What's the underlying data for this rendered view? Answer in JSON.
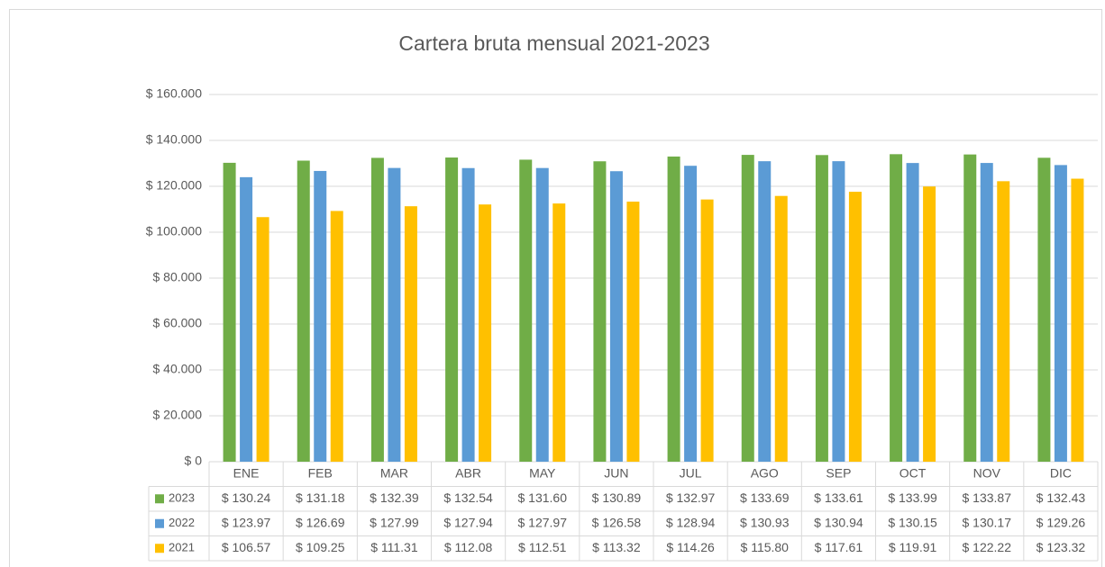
{
  "chart_data": {
    "type": "bar",
    "title": "Cartera bruta  mensual 2021-2023",
    "categories": [
      "ENE",
      "FEB",
      "MAR",
      "ABR",
      "MAY",
      "JUN",
      "JUL",
      "AGO",
      "SEP",
      "OCT",
      "NOV",
      "DIC"
    ],
    "series": [
      {
        "name": "2023",
        "color": "#70ad47",
        "values": [
          130240,
          131180,
          132390,
          132540,
          131600,
          130890,
          132970,
          133690,
          133610,
          133990,
          133870,
          132430
        ],
        "value_labels": [
          "$ 130.24",
          "$ 131.18",
          "$ 132.39",
          "$ 132.54",
          "$ 131.60",
          "$ 130.89",
          "$ 132.97",
          "$ 133.69",
          "$ 133.61",
          "$ 133.99",
          "$ 133.87",
          "$ 132.43"
        ]
      },
      {
        "name": "2022",
        "color": "#5b9bd5",
        "values": [
          123970,
          126690,
          127990,
          127940,
          127970,
          126580,
          128940,
          130930,
          130940,
          130150,
          130170,
          129260
        ],
        "value_labels": [
          "$ 123.97",
          "$ 126.69",
          "$ 127.99",
          "$ 127.94",
          "$ 127.97",
          "$ 126.58",
          "$ 128.94",
          "$ 130.93",
          "$ 130.94",
          "$ 130.15",
          "$ 130.17",
          "$ 129.26"
        ]
      },
      {
        "name": "2021",
        "color": "#ffc000",
        "values": [
          106570,
          109250,
          111310,
          112080,
          112510,
          113320,
          114260,
          115800,
          117610,
          119910,
          122220,
          123320
        ],
        "value_labels": [
          "$ 106.57",
          "$ 109.25",
          "$ 111.31",
          "$ 112.08",
          "$ 112.51",
          "$ 113.32",
          "$ 114.26",
          "$ 115.80",
          "$ 117.61",
          "$ 119.91",
          "$ 122.22",
          "$ 123.32"
        ]
      }
    ],
    "ylim": [
      0,
      160000
    ],
    "yticks": [
      {
        "value": 0,
        "label": "$ 0"
      },
      {
        "value": 20000,
        "label": "$ 20.000"
      },
      {
        "value": 40000,
        "label": "$ 40.000"
      },
      {
        "value": 60000,
        "label": "$ 60.000"
      },
      {
        "value": 80000,
        "label": "$ 80.000"
      },
      {
        "value": 100000,
        "label": "$ 100.000"
      },
      {
        "value": 120000,
        "label": "$ 120.000"
      },
      {
        "value": 140000,
        "label": "$ 140.000"
      },
      {
        "value": 160000,
        "label": "$ 160.000"
      }
    ],
    "grid": true
  }
}
